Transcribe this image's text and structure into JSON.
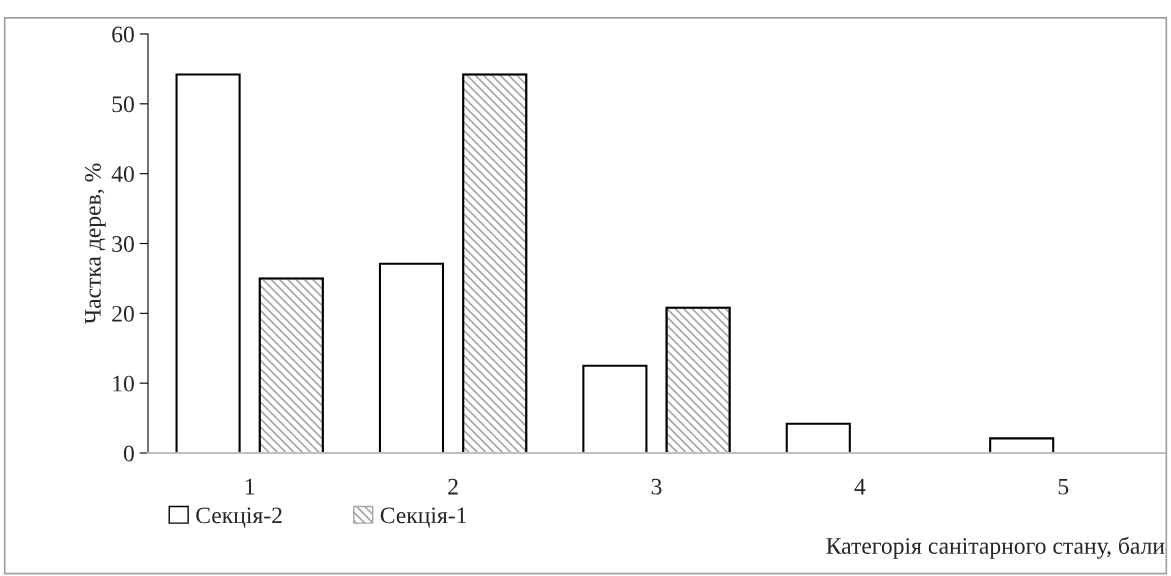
{
  "chart_data": {
    "type": "bar",
    "xlabel": "Категорія санітарного стану, бали",
    "ylabel": "Частка дерев, %",
    "categories": [
      "1",
      "2",
      "3",
      "4",
      "5"
    ],
    "series": [
      {
        "name": "Секція-2",
        "color": "#ffffff",
        "values": [
          54.2,
          27.1,
          12.5,
          4.2,
          2.1
        ]
      },
      {
        "name": "Секція-1",
        "color": "#a6a6a6",
        "values": [
          25.0,
          54.2,
          20.8,
          0,
          0
        ]
      }
    ],
    "ylim": [
      0,
      60
    ],
    "yticks": [
      0,
      10,
      20,
      30,
      40,
      50,
      60
    ],
    "grid": false,
    "legend": "bottom left"
  }
}
